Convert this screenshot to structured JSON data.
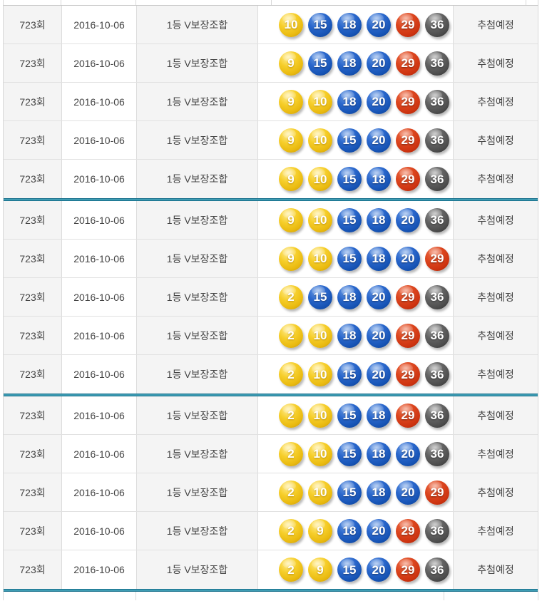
{
  "table": {
    "group_size": 5,
    "rows": [
      {
        "round": "723회",
        "date": "2016-10-06",
        "type": "1등 V보장조합",
        "numbers": [
          10,
          15,
          18,
          20,
          29,
          36
        ],
        "status": "추첨예정"
      },
      {
        "round": "723회",
        "date": "2016-10-06",
        "type": "1등 V보장조합",
        "numbers": [
          9,
          15,
          18,
          20,
          29,
          36
        ],
        "status": "추첨예정"
      },
      {
        "round": "723회",
        "date": "2016-10-06",
        "type": "1등 V보장조합",
        "numbers": [
          9,
          10,
          18,
          20,
          29,
          36
        ],
        "status": "추첨예정"
      },
      {
        "round": "723회",
        "date": "2016-10-06",
        "type": "1등 V보장조합",
        "numbers": [
          9,
          10,
          15,
          20,
          29,
          36
        ],
        "status": "추첨예정"
      },
      {
        "round": "723회",
        "date": "2016-10-06",
        "type": "1등 V보장조합",
        "numbers": [
          9,
          10,
          15,
          18,
          29,
          36
        ],
        "status": "추첨예정"
      },
      {
        "round": "723회",
        "date": "2016-10-06",
        "type": "1등 V보장조합",
        "numbers": [
          9,
          10,
          15,
          18,
          20,
          36
        ],
        "status": "추첨예정"
      },
      {
        "round": "723회",
        "date": "2016-10-06",
        "type": "1등 V보장조합",
        "numbers": [
          9,
          10,
          15,
          18,
          20,
          29
        ],
        "status": "추첨예정"
      },
      {
        "round": "723회",
        "date": "2016-10-06",
        "type": "1등 V보장조합",
        "numbers": [
          2,
          15,
          18,
          20,
          29,
          36
        ],
        "status": "추첨예정"
      },
      {
        "round": "723회",
        "date": "2016-10-06",
        "type": "1등 V보장조합",
        "numbers": [
          2,
          10,
          18,
          20,
          29,
          36
        ],
        "status": "추첨예정"
      },
      {
        "round": "723회",
        "date": "2016-10-06",
        "type": "1등 V보장조합",
        "numbers": [
          2,
          10,
          15,
          20,
          29,
          36
        ],
        "status": "추첨예정"
      },
      {
        "round": "723회",
        "date": "2016-10-06",
        "type": "1등 V보장조합",
        "numbers": [
          2,
          10,
          15,
          18,
          29,
          36
        ],
        "status": "추첨예정"
      },
      {
        "round": "723회",
        "date": "2016-10-06",
        "type": "1등 V보장조합",
        "numbers": [
          2,
          10,
          15,
          18,
          20,
          36
        ],
        "status": "추첨예정"
      },
      {
        "round": "723회",
        "date": "2016-10-06",
        "type": "1등 V보장조합",
        "numbers": [
          2,
          10,
          15,
          18,
          20,
          29
        ],
        "status": "추첨예정"
      },
      {
        "round": "723회",
        "date": "2016-10-06",
        "type": "1등 V보장조합",
        "numbers": [
          2,
          9,
          18,
          20,
          29,
          36
        ],
        "status": "추첨예정"
      },
      {
        "round": "723회",
        "date": "2016-10-06",
        "type": "1등 V보장조합",
        "numbers": [
          2,
          9,
          15,
          20,
          29,
          36
        ],
        "status": "추첨예정"
      }
    ]
  },
  "ball_palette": [
    {
      "max": 10,
      "name": "yellow",
      "hex": "#f0c413"
    },
    {
      "max": 20,
      "name": "blue",
      "hex": "#1c5cc0"
    },
    {
      "max": 30,
      "name": "red",
      "hex": "#d43c14"
    },
    {
      "max": 40,
      "name": "gray",
      "hex": "#545454"
    },
    {
      "max": 45,
      "name": "green",
      "hex": "#3c9a30"
    }
  ],
  "colors": {
    "column_stripe": "#f4f4f4",
    "cell_border": "#dcdcdc",
    "row_border": "#e1e1e1",
    "group_separator": "#3f9db4",
    "group_separator_edge": "#17708c",
    "text": "#444444",
    "ball_number_text": "#ffffff"
  }
}
